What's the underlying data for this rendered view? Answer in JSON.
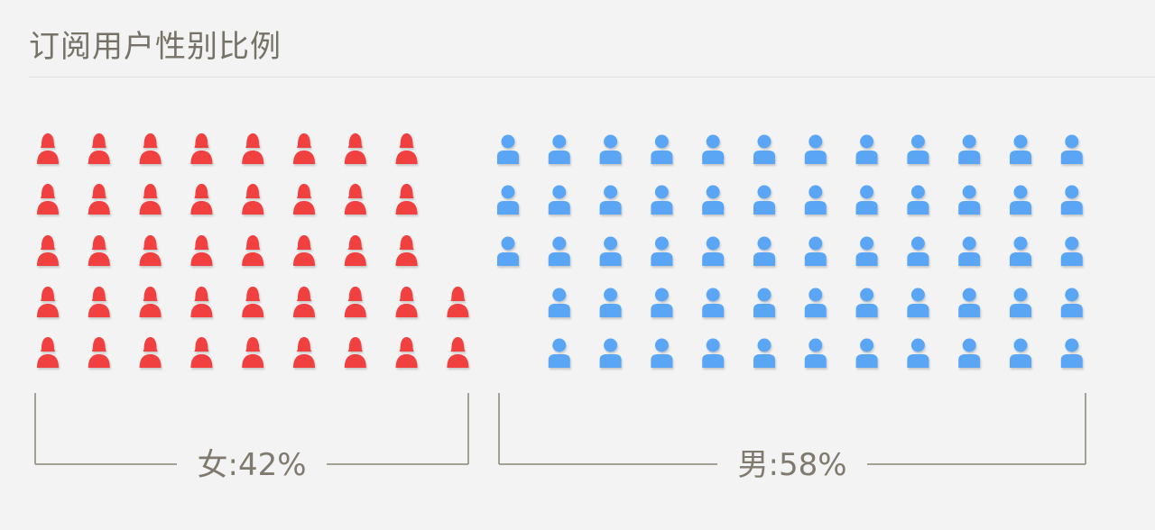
{
  "title": "订阅用户性别比例",
  "chart_data": {
    "type": "pictogram",
    "total_icons": 100,
    "rows": 5,
    "series": [
      {
        "name": "女",
        "label": "女:42%",
        "value": 42,
        "icon": "female-person-icon",
        "color": "#f0403f"
      },
      {
        "name": "男",
        "label": "男:58%",
        "value": 58,
        "icon": "male-person-icon",
        "color": "#5aa6f5"
      }
    ]
  }
}
